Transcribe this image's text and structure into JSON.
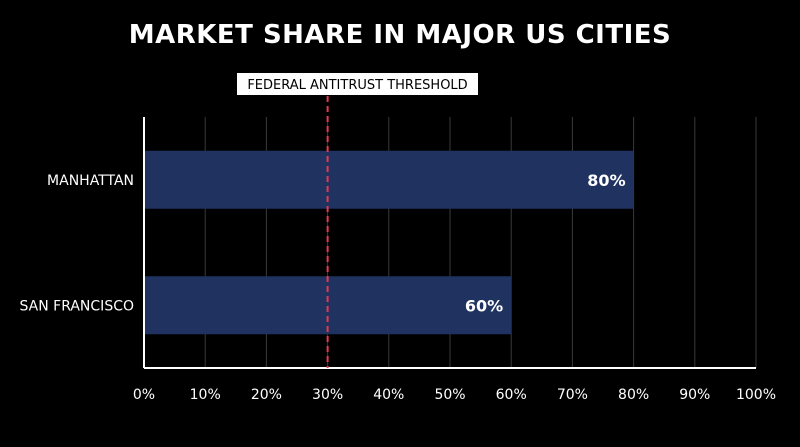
{
  "chart_data": {
    "type": "bar",
    "orientation": "horizontal",
    "title": "MARKET SHARE IN MAJOR US CITIES",
    "categories": [
      "MANHATTAN",
      "SAN FRANCISCO"
    ],
    "values": [
      80,
      60
    ],
    "value_labels": [
      "80%",
      "60%"
    ],
    "xlim": [
      0,
      100
    ],
    "x_ticks": [
      0,
      10,
      20,
      30,
      40,
      50,
      60,
      70,
      80,
      90,
      100
    ],
    "x_tick_labels": [
      "0%",
      "10%",
      "20%",
      "30%",
      "40%",
      "50%",
      "60%",
      "70%",
      "80%",
      "90%",
      "100%"
    ],
    "grid": true,
    "threshold": {
      "value": 30,
      "label": "FEDERAL ANTITRUST THRESHOLD",
      "color": "#e53950"
    },
    "colors": {
      "bar": "#1f3260",
      "background": "#000000",
      "grid": "#3a3a3a",
      "axis": "#ffffff",
      "text": "#ffffff"
    }
  }
}
